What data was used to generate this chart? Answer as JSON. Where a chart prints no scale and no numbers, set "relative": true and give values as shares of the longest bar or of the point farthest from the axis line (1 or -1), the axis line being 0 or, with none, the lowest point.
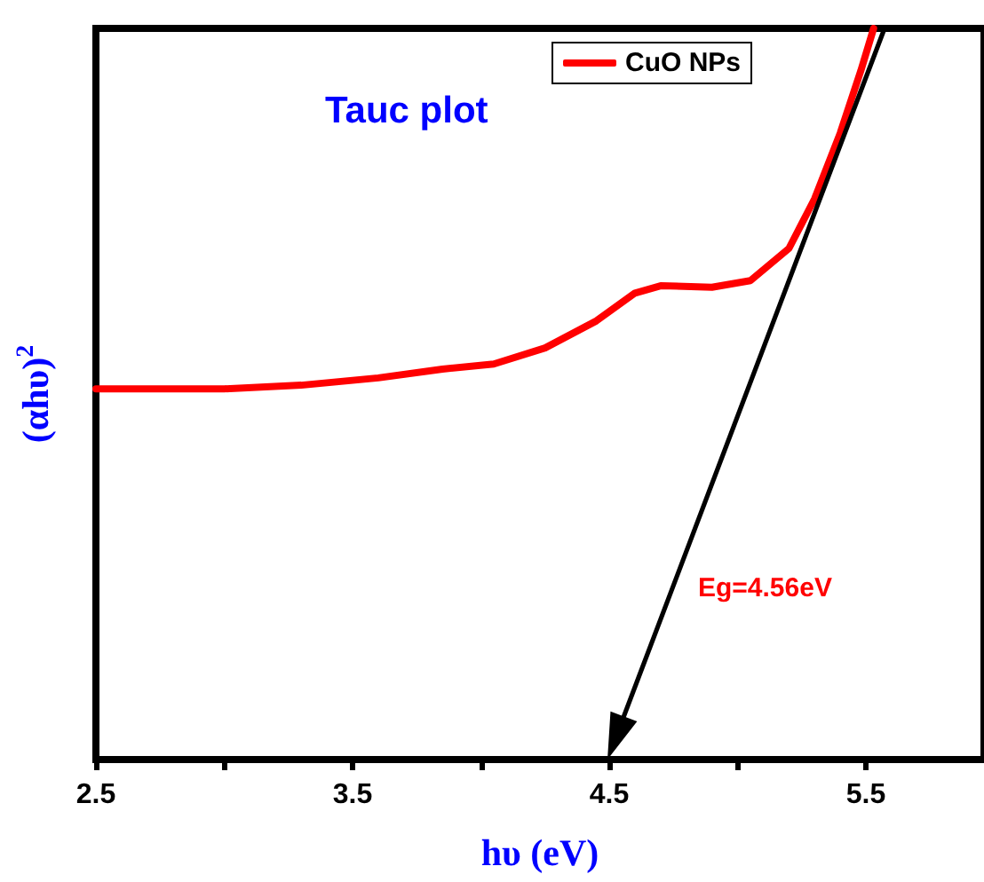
{
  "chart_data": {
    "type": "line",
    "relative": true,
    "xlabel": "hυ (eV)",
    "ylabel": "(αhυ)$^{2}$",
    "annotations": [
      "Tauc plot",
      "Eg=4.56eV"
    ],
    "xlim": [
      2.5,
      5.96
    ],
    "xticks": [
      2.5,
      {
        "value": 3,
        "label": null
      },
      3.5,
      {
        "value": 4,
        "label": null
      },
      4.5,
      {
        "value": 5,
        "label": null
      },
      5.5
    ],
    "tick_labels": "x",
    "legend": "top right",
    "grid": false,
    "marker": "none",
    "line_style": "solid",
    "series": [
      {
        "name": "CuO NPs",
        "color": "#ff0000",
        "x": [
          2.5,
          3.0,
          3.3,
          3.6,
          3.85,
          4.05,
          4.25,
          4.45,
          4.6,
          4.7,
          4.9,
          5.05,
          5.2,
          5.3,
          5.4,
          5.48,
          5.53
        ],
        "values": [
          0.507,
          0.507,
          0.512,
          0.522,
          0.534,
          0.541,
          0.563,
          0.6,
          0.638,
          0.648,
          0.646,
          0.655,
          0.699,
          0.767,
          0.857,
          0.942,
          1
        ]
      }
    ]
  }
}
